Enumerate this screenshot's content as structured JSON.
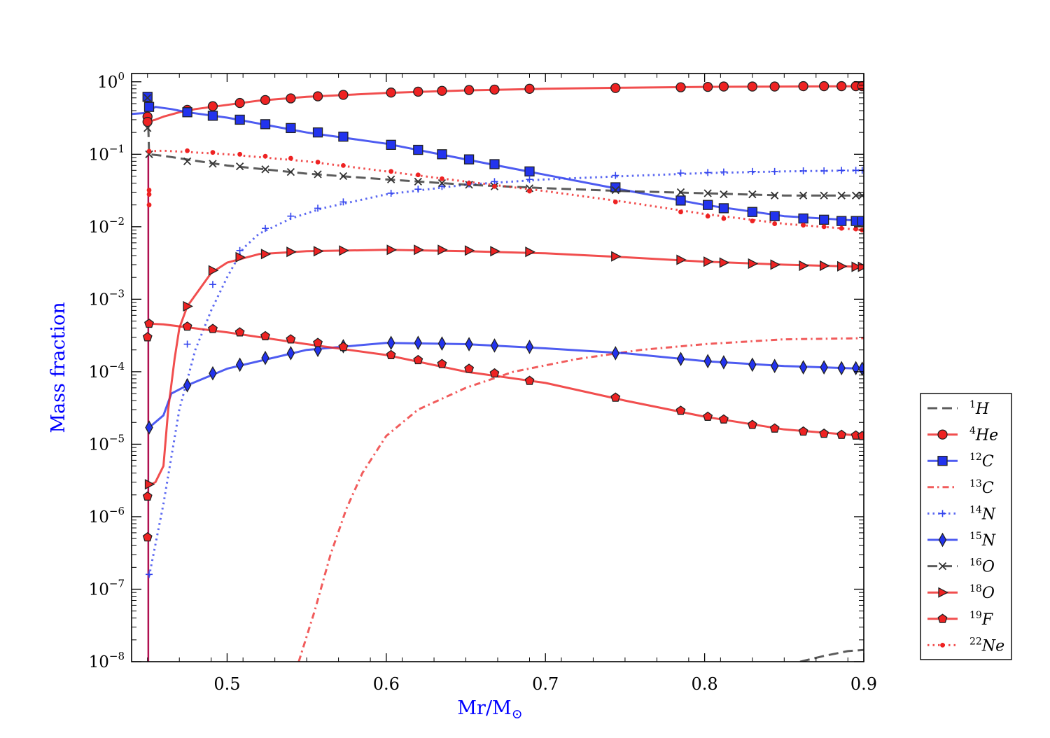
{
  "chart_data": {
    "type": "line",
    "xlabel_main": "Mr/M",
    "xlabel_sub": "⊙",
    "ylabel": "Mass fraction",
    "label_color": "#0000ff",
    "xlim": [
      0.44,
      0.9
    ],
    "ylim": [
      1e-08,
      1.3
    ],
    "yscale": "log",
    "x_ticks": [
      0.5,
      0.6,
      0.7,
      0.8,
      0.9
    ],
    "x_tick_labels": [
      "0.5",
      "0.6",
      "0.7",
      "0.8",
      "0.9"
    ],
    "y_ticks": [
      1e-08,
      1e-07,
      1e-06,
      1e-05,
      0.0001,
      0.001,
      0.01,
      0.1,
      1
    ],
    "y_tick_labels": [
      {
        "base": "10",
        "exp": "−8"
      },
      {
        "base": "10",
        "exp": "−7"
      },
      {
        "base": "10",
        "exp": "−6"
      },
      {
        "base": "10",
        "exp": "−5"
      },
      {
        "base": "10",
        "exp": "−4"
      },
      {
        "base": "10",
        "exp": "−3"
      },
      {
        "base": "10",
        "exp": "−2"
      },
      {
        "base": "10",
        "exp": "−1"
      },
      {
        "base": "10",
        "exp": "0"
      }
    ],
    "grid": false,
    "legend_placement": "outside-lower-right",
    "series": [
      {
        "name": "H",
        "mass": "1",
        "color": "#333333",
        "dash": "dashed",
        "marker": "none",
        "x": [
          0.86,
          0.875,
          0.89,
          0.9
        ],
        "y": [
          1e-08,
          1.2e-08,
          1.4e-08,
          1.45e-08
        ],
        "mx": [],
        "my": []
      },
      {
        "name": "He",
        "mass": "4",
        "color": "#ee2222",
        "dash": "solid",
        "marker": "circle",
        "x": [
          0.45,
          0.455,
          0.46,
          0.47,
          0.48,
          0.5,
          0.52,
          0.55,
          0.6,
          0.65,
          0.7,
          0.75,
          0.8,
          0.85,
          0.9
        ],
        "y": [
          0.28,
          0.3,
          0.33,
          0.38,
          0.42,
          0.48,
          0.55,
          0.62,
          0.7,
          0.76,
          0.8,
          0.83,
          0.85,
          0.86,
          0.87
        ],
        "mx": [
          0.45,
          0.45,
          0.475,
          0.491,
          0.508,
          0.524,
          0.54,
          0.557,
          0.573,
          0.603,
          0.62,
          0.635,
          0.652,
          0.668,
          0.69,
          0.744,
          0.785,
          0.802,
          0.812,
          0.83,
          0.844,
          0.862,
          0.875,
          0.886,
          0.895,
          0.899
        ],
        "my": [
          0.33,
          0.28,
          0.41,
          0.46,
          0.51,
          0.56,
          0.59,
          0.63,
          0.66,
          0.71,
          0.73,
          0.75,
          0.77,
          0.78,
          0.8,
          0.82,
          0.84,
          0.85,
          0.86,
          0.86,
          0.86,
          0.87,
          0.87,
          0.87,
          0.87,
          0.87
        ]
      },
      {
        "name": "C",
        "mass": "12",
        "color": "#2233ee",
        "dash": "solid",
        "marker": "square",
        "x": [
          0.44,
          0.448,
          0.455,
          0.465,
          0.475,
          0.5,
          0.55,
          0.6,
          0.65,
          0.7,
          0.75,
          0.8,
          0.85,
          0.9
        ],
        "y": [
          0.36,
          0.37,
          0.45,
          0.42,
          0.38,
          0.32,
          0.2,
          0.14,
          0.085,
          0.052,
          0.032,
          0.02,
          0.014,
          0.012
        ],
        "mx": [
          0.45,
          0.451,
          0.475,
          0.491,
          0.508,
          0.524,
          0.54,
          0.557,
          0.573,
          0.603,
          0.62,
          0.635,
          0.652,
          0.668,
          0.69,
          0.744,
          0.785,
          0.802,
          0.812,
          0.83,
          0.844,
          0.862,
          0.875,
          0.886,
          0.895,
          0.899
        ],
        "my": [
          0.62,
          0.45,
          0.38,
          0.34,
          0.3,
          0.26,
          0.23,
          0.2,
          0.175,
          0.135,
          0.115,
          0.1,
          0.085,
          0.073,
          0.058,
          0.035,
          0.023,
          0.02,
          0.018,
          0.016,
          0.014,
          0.013,
          0.0125,
          0.012,
          0.012,
          0.012
        ]
      },
      {
        "name": "C",
        "mass": "13",
        "color": "#ee3333",
        "dash": "dashdot",
        "marker": "none",
        "x": [
          0.545,
          0.555,
          0.565,
          0.575,
          0.585,
          0.6,
          0.62,
          0.65,
          0.68,
          0.72,
          0.76,
          0.8,
          0.85,
          0.9
        ],
        "y": [
          1e-08,
          5e-08,
          3e-07,
          1.3e-06,
          4e-06,
          1.3e-05,
          3e-05,
          6e-05,
          0.0001,
          0.00015,
          0.0002,
          0.00024,
          0.00028,
          0.00029
        ],
        "mx": [],
        "my": []
      },
      {
        "name": "N",
        "mass": "14",
        "color": "#3344ee",
        "dash": "dotted",
        "marker": "plus",
        "x": [
          0.451,
          0.46,
          0.47,
          0.48,
          0.49,
          0.5,
          0.51,
          0.52,
          0.54,
          0.56,
          0.6,
          0.65,
          0.7,
          0.75,
          0.8,
          0.85,
          0.9
        ],
        "y": [
          1.5e-07,
          1.5e-06,
          3e-05,
          0.0002,
          0.0007,
          0.002,
          0.005,
          0.008,
          0.013,
          0.018,
          0.028,
          0.038,
          0.045,
          0.05,
          0.055,
          0.058,
          0.06
        ],
        "mx": [
          0.451,
          0.475,
          0.491,
          0.508,
          0.524,
          0.54,
          0.557,
          0.573,
          0.603,
          0.62,
          0.635,
          0.652,
          0.668,
          0.69,
          0.744,
          0.785,
          0.802,
          0.812,
          0.83,
          0.844,
          0.862,
          0.875,
          0.886,
          0.895,
          0.899
        ],
        "my": [
          1.6e-07,
          0.00024,
          0.0016,
          0.0047,
          0.0095,
          0.014,
          0.018,
          0.022,
          0.029,
          0.033,
          0.036,
          0.039,
          0.042,
          0.045,
          0.051,
          0.055,
          0.056,
          0.057,
          0.058,
          0.058,
          0.059,
          0.059,
          0.06,
          0.06,
          0.06
        ]
      },
      {
        "name": "N",
        "mass": "15",
        "color": "#2233ee",
        "dash": "solid",
        "marker": "diamond",
        "x": [
          0.451,
          0.46,
          0.465,
          0.475,
          0.5,
          0.55,
          0.6,
          0.65,
          0.7,
          0.75,
          0.8,
          0.85,
          0.9
        ],
        "y": [
          1.7e-05,
          2.5e-05,
          5e-05,
          6.5e-05,
          0.00011,
          0.0002,
          0.00025,
          0.00024,
          0.00021,
          0.00018,
          0.00014,
          0.00012,
          0.00011
        ],
        "mx": [
          0.451,
          0.475,
          0.491,
          0.508,
          0.524,
          0.54,
          0.557,
          0.573,
          0.603,
          0.62,
          0.635,
          0.652,
          0.668,
          0.69,
          0.744,
          0.785,
          0.802,
          0.812,
          0.83,
          0.844,
          0.862,
          0.875,
          0.886,
          0.895,
          0.899
        ],
        "my": [
          1.7e-05,
          6.5e-05,
          9.5e-05,
          0.000125,
          0.000155,
          0.00018,
          0.0002,
          0.000225,
          0.00025,
          0.00025,
          0.000245,
          0.00024,
          0.00023,
          0.00022,
          0.00018,
          0.00015,
          0.00014,
          0.000135,
          0.000125,
          0.00012,
          0.000115,
          0.000115,
          0.000112,
          0.000112,
          0.00011
        ]
      },
      {
        "name": "O",
        "mass": "16",
        "color": "#333333",
        "dash": "dashed",
        "marker": "x",
        "x": [
          0.45,
          0.451,
          0.46,
          0.5,
          0.55,
          0.6,
          0.65,
          0.7,
          0.75,
          0.8,
          0.85,
          0.9
        ],
        "y": [
          0.6,
          0.1,
          0.095,
          0.07,
          0.054,
          0.045,
          0.038,
          0.034,
          0.031,
          0.029,
          0.027,
          0.027
        ],
        "mx": [
          0.45,
          0.45,
          0.451,
          0.475,
          0.491,
          0.508,
          0.524,
          0.54,
          0.557,
          0.573,
          0.603,
          0.62,
          0.635,
          0.652,
          0.668,
          0.69,
          0.744,
          0.785,
          0.802,
          0.812,
          0.83,
          0.844,
          0.862,
          0.875,
          0.886,
          0.895,
          0.899
        ],
        "my": [
          0.6,
          0.23,
          0.1,
          0.08,
          0.074,
          0.068,
          0.062,
          0.057,
          0.053,
          0.05,
          0.045,
          0.042,
          0.04,
          0.038,
          0.036,
          0.034,
          0.032,
          0.03,
          0.029,
          0.028,
          0.028,
          0.027,
          0.027,
          0.027,
          0.027,
          0.027,
          0.027
        ]
      },
      {
        "name": "O",
        "mass": "18",
        "color": "#ee2222",
        "dash": "solid",
        "marker": "triangle",
        "x": [
          0.451,
          0.455,
          0.46,
          0.463,
          0.467,
          0.47,
          0.475,
          0.49,
          0.5,
          0.52,
          0.55,
          0.6,
          0.65,
          0.7,
          0.75,
          0.8,
          0.85,
          0.9
        ],
        "y": [
          2.7e-06,
          3e-06,
          5e-06,
          3e-05,
          0.00015,
          0.0004,
          0.0008,
          0.0023,
          0.0032,
          0.0042,
          0.0046,
          0.0048,
          0.0046,
          0.0043,
          0.0038,
          0.0033,
          0.003,
          0.0028
        ],
        "mx": [
          0.451,
          0.475,
          0.491,
          0.508,
          0.524,
          0.54,
          0.557,
          0.573,
          0.603,
          0.62,
          0.635,
          0.652,
          0.668,
          0.69,
          0.744,
          0.785,
          0.802,
          0.812,
          0.83,
          0.844,
          0.862,
          0.875,
          0.886,
          0.895,
          0.899
        ],
        "my": [
          2.8e-06,
          0.0008,
          0.0025,
          0.0038,
          0.0042,
          0.0045,
          0.0046,
          0.0047,
          0.0048,
          0.0048,
          0.0048,
          0.0047,
          0.0046,
          0.0045,
          0.0039,
          0.0035,
          0.0033,
          0.0032,
          0.0031,
          0.003,
          0.0029,
          0.0029,
          0.00285,
          0.0028,
          0.0028
        ]
      },
      {
        "name": "F",
        "mass": "19",
        "color": "#ee2222",
        "dash": "solid",
        "marker": "pentagon",
        "x": [
          0.451,
          0.46,
          0.475,
          0.5,
          0.55,
          0.6,
          0.65,
          0.7,
          0.75,
          0.8,
          0.85,
          0.9
        ],
        "y": [
          0.00046,
          0.00045,
          0.00041,
          0.00035,
          0.00024,
          0.00017,
          0.0001,
          7e-05,
          4e-05,
          2.4e-05,
          1.6e-05,
          1.3e-05
        ],
        "mx": [
          0.45,
          0.45,
          0.45,
          0.451,
          0.475,
          0.491,
          0.508,
          0.524,
          0.54,
          0.557,
          0.573,
          0.603,
          0.62,
          0.635,
          0.652,
          0.668,
          0.69,
          0.744,
          0.785,
          0.802,
          0.812,
          0.83,
          0.844,
          0.862,
          0.875,
          0.886,
          0.895,
          0.899
        ],
        "my": [
          5.2e-07,
          1.9e-06,
          0.0003,
          0.00046,
          0.00042,
          0.00039,
          0.00035,
          0.00031,
          0.00028,
          0.00025,
          0.00022,
          0.00017,
          0.000145,
          0.000128,
          0.00011,
          9.5e-05,
          7.5e-05,
          4.4e-05,
          2.9e-05,
          2.4e-05,
          2.2e-05,
          1.85e-05,
          1.65e-05,
          1.5e-05,
          1.4e-05,
          1.35e-05,
          1.32e-05,
          1.3e-05
        ]
      },
      {
        "name": "Ne",
        "mass": "22",
        "color": "#ee2222",
        "dash": "dotted",
        "marker": "dot",
        "x": [
          0.451,
          0.46,
          0.5,
          0.55,
          0.6,
          0.65,
          0.7,
          0.75,
          0.8,
          0.85,
          0.9
        ],
        "y": [
          0.11,
          0.112,
          0.1,
          0.08,
          0.058,
          0.042,
          0.031,
          0.022,
          0.015,
          0.011,
          0.009
        ],
        "mx": [
          0.451,
          0.451,
          0.451,
          0.451,
          0.475,
          0.491,
          0.508,
          0.524,
          0.54,
          0.557,
          0.573,
          0.603,
          0.62,
          0.635,
          0.652,
          0.668,
          0.69,
          0.744,
          0.785,
          0.802,
          0.812,
          0.83,
          0.844,
          0.862,
          0.875,
          0.886,
          0.895,
          0.899
        ],
        "my": [
          0.02,
          0.028,
          0.032,
          0.11,
          0.112,
          0.106,
          0.1,
          0.094,
          0.088,
          0.078,
          0.07,
          0.058,
          0.052,
          0.046,
          0.04,
          0.036,
          0.031,
          0.022,
          0.016,
          0.014,
          0.013,
          0.012,
          0.011,
          0.0105,
          0.01,
          0.0095,
          0.0093,
          0.009
        ]
      }
    ]
  }
}
